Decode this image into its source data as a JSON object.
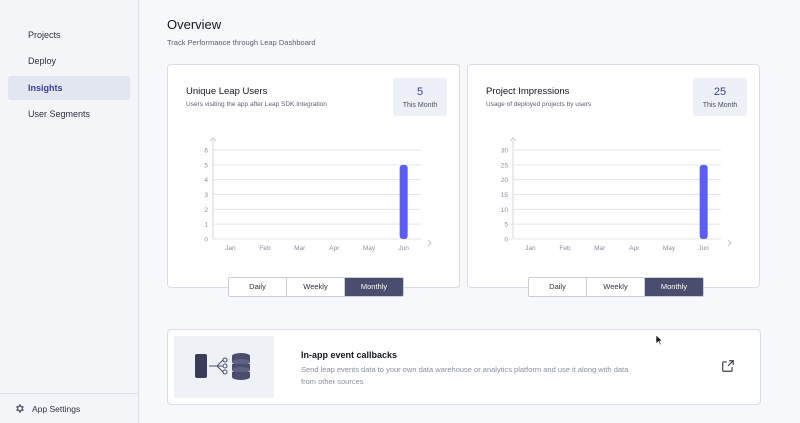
{
  "sidebar": {
    "items": [
      {
        "label": "Projects",
        "active": false
      },
      {
        "label": "Deploy",
        "active": false
      },
      {
        "label": "Insights",
        "active": true
      },
      {
        "label": "User Segments",
        "active": false
      }
    ],
    "settings_label": "App Settings",
    "settings_icon": "gear-icon"
  },
  "header": {
    "title": "Overview",
    "subtitle": "Track Performance through Leap Dashboard"
  },
  "cards": [
    {
      "title": "Unique Leap Users",
      "description": "Users visiting the app after Leap SDK Integration",
      "stat_value": "5",
      "stat_label": "This Month",
      "toggle": [
        "Daily",
        "Weekly",
        "Monthly"
      ],
      "toggle_active": "Monthly"
    },
    {
      "title": "Project Impressions",
      "description": "Usage of deployed projects by users",
      "stat_value": "25",
      "stat_label": "This Month",
      "toggle": [
        "Daily",
        "Weekly",
        "Monthly"
      ],
      "toggle_active": "Monthly"
    }
  ],
  "chart_data": [
    {
      "type": "bar",
      "categories": [
        "Jan",
        "Feb",
        "Mar",
        "Apr",
        "May",
        "Jun"
      ],
      "values": [
        0,
        0,
        0,
        0,
        0,
        5
      ],
      "yticks": [
        "0",
        "1",
        "2",
        "3",
        "4",
        "5",
        "6"
      ],
      "ylim": [
        0,
        6
      ],
      "grid": true,
      "bar_color": "#5b5ef0",
      "title": "",
      "xlabel": "",
      "ylabel": ""
    },
    {
      "type": "bar",
      "categories": [
        "Jan",
        "Feb",
        "Mar",
        "Apr",
        "May",
        "Jun"
      ],
      "values": [
        0,
        0,
        0,
        0,
        0,
        25
      ],
      "yticks": [
        "0",
        "5",
        "10",
        "15",
        "20",
        "25",
        "30"
      ],
      "ylim": [
        0,
        30
      ],
      "grid": true,
      "bar_color": "#5b5ef0",
      "title": "",
      "xlabel": "",
      "ylabel": ""
    }
  ],
  "banner": {
    "title": "In-app event callbacks",
    "description": "Send leap events data to your own data warehouse or analytics platform and use it along with data from other sources",
    "link_icon": "external-link-icon"
  },
  "colors": {
    "accent": "#3b3d96",
    "bar": "#5b5ef0",
    "toggle_active": "#4a4d6d"
  }
}
